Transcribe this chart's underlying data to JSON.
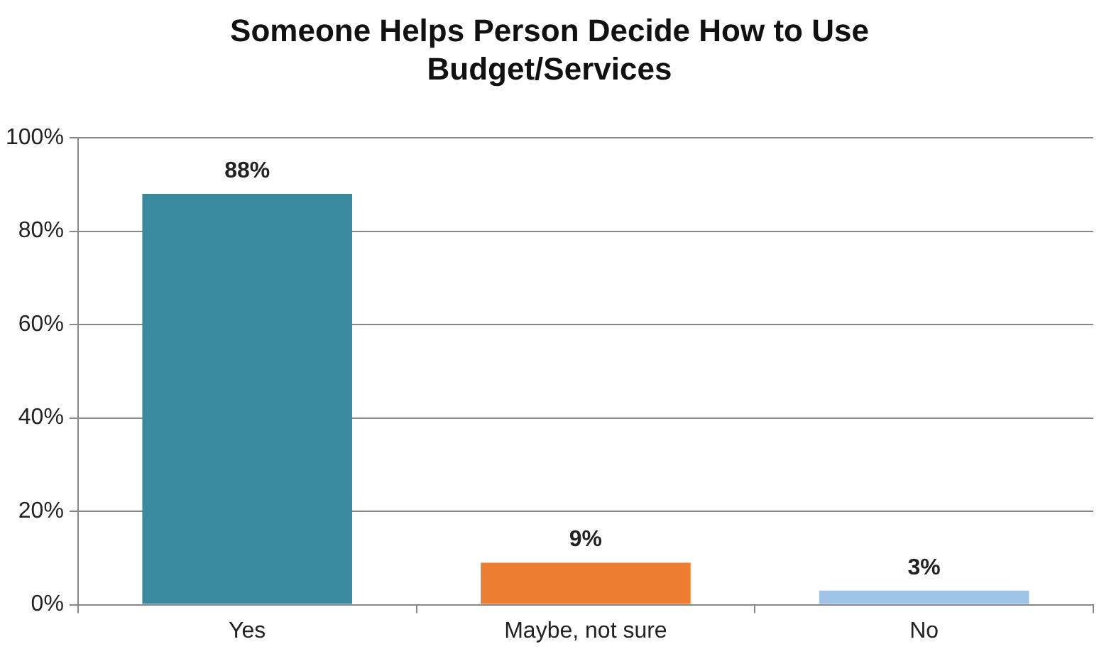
{
  "chart_data": {
    "type": "bar",
    "title": "Someone Helps Person Decide How to Use Budget/Services",
    "categories": [
      "Yes",
      "Maybe, not sure",
      "No"
    ],
    "values": [
      88,
      9,
      3
    ],
    "colors": [
      "#3a8aa0",
      "#ed7d31",
      "#9dc3e6"
    ],
    "value_labels": [
      "88%",
      "9%",
      "3%"
    ],
    "ylim": [
      0,
      100
    ],
    "yticks": [
      {
        "value": 0,
        "label": "0%"
      },
      {
        "value": 20,
        "label": "20%"
      },
      {
        "value": 40,
        "label": "40%"
      },
      {
        "value": 60,
        "label": "60%"
      },
      {
        "value": 80,
        "label": "80%"
      },
      {
        "value": 100,
        "label": "100%"
      }
    ],
    "grid": "y",
    "legend": false
  }
}
